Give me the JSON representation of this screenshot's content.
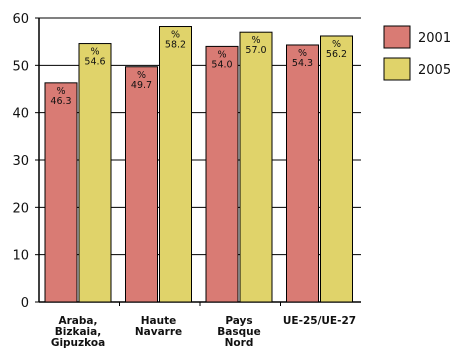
{
  "chart_data": {
    "type": "bar",
    "categories": [
      [
        "Araba,",
        "Bizkaia,",
        "Gipuzkoa"
      ],
      [
        "Haute",
        "Navarre"
      ],
      [
        "Pays",
        "Basque",
        "Nord"
      ],
      [
        "UE-25/UE-27"
      ]
    ],
    "series": [
      {
        "name": "2001",
        "color": "#d97b74",
        "values": [
          46.3,
          49.7,
          54.0,
          54.3
        ],
        "labels": [
          "46.3",
          "49.7",
          "54.0",
          "54.3"
        ]
      },
      {
        "name": "2005",
        "color": "#e0d36a",
        "values": [
          54.6,
          58.2,
          57.0,
          56.2
        ],
        "labels": [
          "54.6",
          "58.2",
          "57.0",
          "56.2"
        ]
      }
    ],
    "value_prefix": "%",
    "yticks": [
      "0",
      "10",
      "20",
      "30",
      "40",
      "50",
      "60"
    ],
    "ylim": [
      0,
      60
    ],
    "grid": true,
    "legend_position": "right"
  }
}
